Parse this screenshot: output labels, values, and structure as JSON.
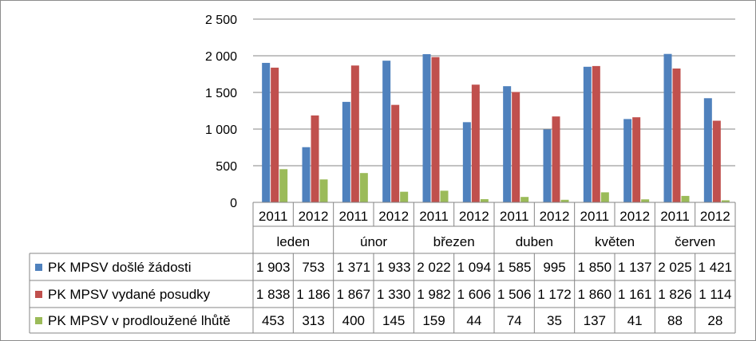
{
  "chart_data": {
    "type": "bar",
    "title": "",
    "xlabel": "",
    "ylabel": "",
    "ylim": [
      0,
      2500
    ],
    "yticks": [
      0,
      500,
      1000,
      1500,
      2000,
      2500
    ],
    "ytick_labels": [
      "0",
      "500",
      "1 000",
      "1 500",
      "2 000",
      "2 500"
    ],
    "grid": true,
    "legend": "in-table-left",
    "groups": [
      "leden",
      "únor",
      "březen",
      "duben",
      "květen",
      "červen"
    ],
    "years": [
      "2011",
      "2012"
    ],
    "categories": [
      "2011",
      "2012",
      "2011",
      "2012",
      "2011",
      "2012",
      "2011",
      "2012",
      "2011",
      "2012",
      "2011",
      "2012"
    ],
    "series": [
      {
        "name": "PK MPSV došlé žádosti",
        "color": "#4f81bd",
        "values": [
          1903,
          753,
          1371,
          1933,
          2022,
          1094,
          1585,
          995,
          1850,
          1137,
          2025,
          1421
        ],
        "labels": [
          "1 903",
          "753",
          "1 371",
          "1 933",
          "2 022",
          "1 094",
          "1 585",
          "995",
          "1 850",
          "1 137",
          "2 025",
          "1 421"
        ]
      },
      {
        "name": "PK MPSV vydané posudky",
        "color": "#c0504d",
        "values": [
          1838,
          1186,
          1867,
          1330,
          1982,
          1606,
          1506,
          1172,
          1860,
          1161,
          1826,
          1114
        ],
        "labels": [
          "1 838",
          "1 186",
          "1 867",
          "1 330",
          "1 982",
          "1 606",
          "1 506",
          "1 172",
          "1 860",
          "1 161",
          "1 826",
          "1 114"
        ]
      },
      {
        "name": "PK MPSV v prodloužené lhůtě",
        "color": "#9bbb59",
        "values": [
          453,
          313,
          400,
          145,
          159,
          44,
          74,
          35,
          137,
          41,
          88,
          28
        ],
        "labels": [
          "453",
          "313",
          "400",
          "145",
          "159",
          "44",
          "74",
          "35",
          "137",
          "41",
          "88",
          "28"
        ]
      }
    ]
  }
}
